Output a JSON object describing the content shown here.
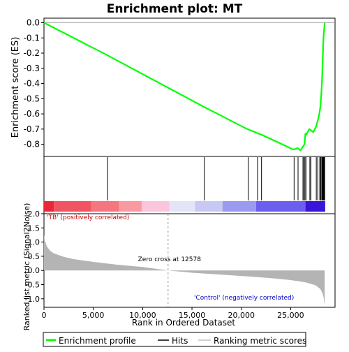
{
  "chart_data": [
    {
      "type": "line",
      "title": "Enrichment plot: MT",
      "ylabel": "Enrichment score (ES)",
      "ylim": [
        -0.88,
        0.03
      ],
      "yticks": [
        0.0,
        -0.1,
        -0.2,
        -0.3,
        -0.4,
        -0.5,
        -0.6,
        -0.7,
        -0.8
      ],
      "ytick_labels": [
        "0.0",
        "-0.1",
        "-0.2",
        "-0.3",
        "-0.4",
        "-0.5",
        "-0.6",
        "-0.7",
        "-0.8"
      ],
      "xlim": [
        0,
        29500
      ],
      "grid": false,
      "baseline": 0.0,
      "color": "#00ff00",
      "series": [
        {
          "name": "Enrichment profile",
          "x": [
            0,
            6300,
            6450,
            16100,
            16250,
            20600,
            20800,
            21600,
            21750,
            22000,
            25300,
            25700,
            26000,
            26200,
            26300,
            26400,
            26500,
            26600,
            26900,
            27000,
            27300,
            27600,
            27800,
            27900,
            28000,
            28050,
            28100,
            28150,
            28200,
            28250,
            28300,
            28350,
            28400,
            28450
          ],
          "y": [
            0.0,
            -0.21,
            -0.215,
            -0.55,
            -0.555,
            -0.7,
            -0.705,
            -0.725,
            -0.73,
            -0.735,
            -0.835,
            -0.825,
            -0.84,
            -0.82,
            -0.81,
            -0.8,
            -0.73,
            -0.735,
            -0.7,
            -0.705,
            -0.72,
            -0.68,
            -0.63,
            -0.6,
            -0.56,
            -0.52,
            -0.48,
            -0.42,
            -0.35,
            -0.25,
            -0.15,
            -0.08,
            -0.04,
            0.0
          ]
        }
      ]
    },
    {
      "type": "hits",
      "name": "Hits",
      "xlim": [
        0,
        29500
      ],
      "hits": [
        6450,
        16250,
        20700,
        21650,
        22050,
        25350,
        25750,
        26250,
        26350,
        26450,
        26550,
        26950,
        27050,
        27600,
        27750,
        27950,
        28050,
        28150,
        28200,
        28250,
        28300,
        28350,
        28400,
        28450
      ],
      "color_bar": [
        {
          "from": 0,
          "to": 1000,
          "color": "#e8283a"
        },
        {
          "from": 1000,
          "to": 4800,
          "color": "#f05462"
        },
        {
          "from": 4800,
          "to": 7600,
          "color": "#f5767e"
        },
        {
          "from": 7600,
          "to": 9900,
          "color": "#f89aa0"
        },
        {
          "from": 9900,
          "to": 12700,
          "color": "#fbc5dc"
        },
        {
          "from": 12700,
          "to": 15300,
          "color": "#e4e4f8"
        },
        {
          "from": 15300,
          "to": 18100,
          "color": "#c8c8f4"
        },
        {
          "from": 18100,
          "to": 21500,
          "color": "#9a9af0"
        },
        {
          "from": 21500,
          "to": 26500,
          "color": "#6c5ff0"
        },
        {
          "from": 26500,
          "to": 28500,
          "color": "#3a14d8"
        }
      ]
    },
    {
      "type": "area",
      "ylabel": "Ranked list metric (Signal2Noise)",
      "xlabel": "Rank in Ordered Dataset",
      "xlim": [
        0,
        29500
      ],
      "ylim": [
        -1.3,
        2.0
      ],
      "xticks": [
        0,
        5000,
        10000,
        15000,
        20000,
        25000
      ],
      "xtick_labels": [
        "0",
        "5,000",
        "10,000",
        "15,000",
        "20,000",
        "25,000"
      ],
      "yticks": [
        2.0,
        1.5,
        1.0,
        0.5,
        0.0,
        -0.5,
        -1.0
      ],
      "ytick_labels": [
        "2.0",
        "1.5",
        "1.0",
        "0.5",
        "0.0",
        "-0.5",
        "-1.0"
      ],
      "zero_cross": 12578,
      "zero_cross_label": "Zero cross at 12578",
      "positive_label": "'TB' (positively correlated)",
      "negative_label": "'Control' (negatively correlated)",
      "positive_color": "#cc0000",
      "negative_color": "#0000cc",
      "fill_color": "#b4b4b4",
      "series": [
        {
          "x": [
            0,
            100,
            300,
            600,
            1000,
            2000,
            3000,
            5000,
            7500,
            10000,
            12578,
            15000,
            18000,
            21000,
            23000,
            25000,
            26500,
            27500,
            28000,
            28200,
            28350,
            28450
          ],
          "y": [
            1.25,
            1.05,
            0.85,
            0.7,
            0.6,
            0.48,
            0.4,
            0.3,
            0.2,
            0.12,
            0.0,
            -0.08,
            -0.15,
            -0.22,
            -0.27,
            -0.34,
            -0.42,
            -0.52,
            -0.65,
            -0.78,
            -0.95,
            -1.25
          ]
        }
      ]
    }
  ],
  "legend": {
    "items": [
      {
        "label": "Enrichment profile",
        "color": "#00ff00"
      },
      {
        "label": "Hits",
        "color": "#000000"
      },
      {
        "label": "Ranking metric scores",
        "color": "#c0c0c0"
      }
    ]
  }
}
